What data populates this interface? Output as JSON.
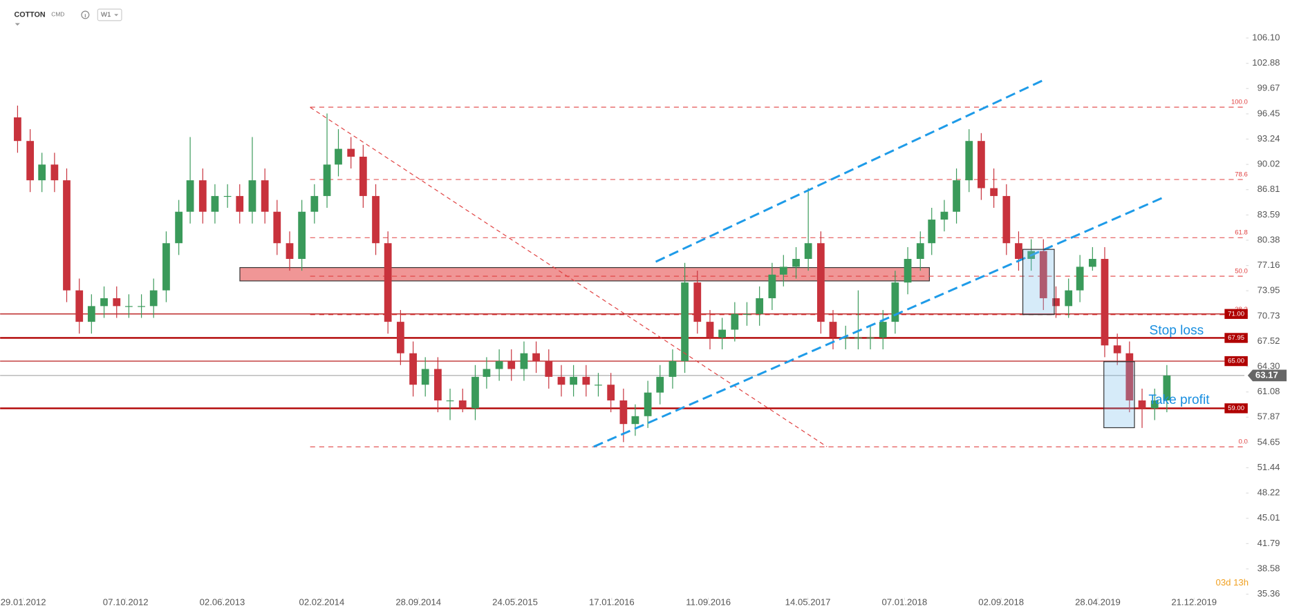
{
  "header": {
    "symbol": "COTTON",
    "market": "CMD",
    "timeframe": "W1",
    "countdown": "03d 13h"
  },
  "chart_data": {
    "type": "candlestick",
    "x": [
      "2012-01-15",
      "2012-02-15",
      "2012-03-15",
      "2012-04-15",
      "2012-05-15",
      "2012-06-15",
      "2012-07-15",
      "2012-08-15",
      "2012-09-15",
      "2012-10-15",
      "2012-11-15",
      "2012-12-15",
      "2013-01-15",
      "2013-02-15",
      "2013-03-15",
      "2013-04-15",
      "2013-05-15",
      "2013-06-15",
      "2013-07-15",
      "2013-08-15",
      "2013-09-15",
      "2013-10-15",
      "2013-11-15",
      "2013-12-15",
      "2014-01-15",
      "2014-02-15",
      "2014-03-15",
      "2014-04-15",
      "2014-05-15",
      "2014-06-15",
      "2014-07-15",
      "2014-08-15",
      "2014-09-15",
      "2014-10-15",
      "2014-11-15",
      "2014-12-15",
      "2015-01-15",
      "2015-02-15",
      "2015-03-15",
      "2015-04-15",
      "2015-05-15",
      "2015-06-15",
      "2015-07-15",
      "2015-08-15",
      "2015-09-15",
      "2015-10-15",
      "2015-11-15",
      "2015-12-15",
      "2016-01-15",
      "2016-02-15",
      "2016-03-15",
      "2016-04-15",
      "2016-05-15",
      "2016-06-15",
      "2016-07-15",
      "2016-08-15",
      "2016-09-15",
      "2016-10-15",
      "2016-11-15",
      "2016-12-15",
      "2017-01-15",
      "2017-02-15",
      "2017-03-15",
      "2017-04-15",
      "2017-05-15",
      "2017-06-15",
      "2017-07-15",
      "2017-08-15",
      "2017-09-15",
      "2017-10-15",
      "2017-11-15",
      "2017-12-15",
      "2018-01-15",
      "2018-02-15",
      "2018-03-15",
      "2018-04-15",
      "2018-05-15",
      "2018-06-15",
      "2018-07-15",
      "2018-08-15",
      "2018-09-15",
      "2018-10-15",
      "2018-11-15",
      "2018-12-15",
      "2019-01-15",
      "2019-02-15",
      "2019-03-15",
      "2019-04-15",
      "2019-05-15",
      "2019-06-15",
      "2019-07-15",
      "2019-08-15",
      "2019-09-15",
      "2019-10-15"
    ],
    "open": [
      96,
      93,
      88,
      90,
      88,
      74,
      70,
      72,
      73,
      72,
      72,
      72,
      74,
      80,
      84,
      88,
      84,
      86,
      86,
      84,
      88,
      84,
      80,
      78,
      84,
      86,
      90,
      92,
      91,
      86,
      80,
      70,
      66,
      62,
      64,
      60,
      60,
      59,
      63,
      64,
      65,
      64,
      66,
      65,
      63,
      62,
      63,
      62,
      62,
      60,
      57,
      58,
      61,
      63,
      65,
      75,
      70,
      68,
      69,
      71,
      71,
      73,
      76,
      77,
      78,
      80,
      70,
      68,
      68,
      68,
      68,
      70,
      75,
      78,
      80,
      83,
      84,
      88,
      93,
      87,
      86,
      80,
      78,
      79,
      73,
      72,
      74,
      77,
      78,
      67,
      66,
      60,
      59,
      60
    ],
    "high": [
      97.5,
      94.5,
      91.5,
      91.5,
      89.5,
      75.5,
      73.5,
      74.5,
      74.5,
      73.5,
      73.5,
      75.5,
      81.5,
      85.5,
      93.5,
      89.5,
      87.5,
      87.5,
      87.5,
      93.5,
      89.5,
      85.5,
      81.5,
      85.5,
      87.5,
      96.5,
      94.5,
      93.5,
      92.5,
      87.5,
      81.5,
      71.5,
      67.5,
      65.5,
      65.5,
      61.5,
      61.5,
      64.5,
      65.5,
      66.5,
      66.5,
      67.5,
      67.5,
      66.5,
      64.5,
      64.5,
      64.5,
      63.5,
      63.5,
      61.5,
      59.5,
      62.5,
      64.5,
      66.5,
      77.5,
      76.5,
      71.5,
      70.5,
      72.5,
      72.5,
      74.5,
      77.5,
      78.5,
      79.5,
      87,
      81.5,
      71.5,
      69.5,
      74,
      69.5,
      71.5,
      76.5,
      79.5,
      81.5,
      84.5,
      85.5,
      89.5,
      94.5,
      94,
      89.5,
      87.5,
      81.5,
      80.5,
      80.5,
      74.5,
      75.5,
      78.5,
      79.5,
      79.5,
      68.5,
      67.5,
      61.5,
      61.5,
      64.5
    ],
    "low": [
      91.5,
      86.5,
      86.5,
      86.5,
      72.5,
      68.5,
      68.5,
      70.5,
      70.5,
      70.5,
      70.5,
      70.5,
      72.5,
      78.5,
      82.5,
      82.5,
      82.5,
      84.5,
      82.5,
      82.5,
      82.5,
      78.5,
      76.5,
      76.5,
      82.5,
      84.5,
      88.5,
      89.5,
      84.5,
      78.5,
      68.5,
      64.5,
      60.5,
      60.5,
      58.5,
      57.5,
      58.5,
      57.5,
      61.5,
      62.5,
      62.5,
      62.5,
      63.5,
      61.5,
      60.5,
      60.5,
      60.5,
      60.5,
      58.5,
      54.7,
      55.5,
      56.5,
      59.5,
      61.5,
      63.5,
      68.5,
      66.5,
      66.5,
      67.5,
      69.5,
      69.5,
      71.5,
      74.5,
      75.5,
      76.5,
      68.5,
      66.5,
      66.5,
      66.5,
      66.5,
      66.5,
      68.5,
      73.5,
      76.5,
      78.5,
      81.5,
      82.5,
      86.5,
      85.5,
      84.5,
      78.5,
      76.5,
      76.5,
      71.5,
      70.5,
      70.5,
      72.5,
      76.5,
      65.5,
      64.5,
      58.5,
      56.5,
      57.5,
      58.5
    ],
    "close": [
      93,
      88,
      90,
      88,
      74,
      70,
      72,
      73,
      72,
      72,
      72,
      74,
      80,
      84,
      88,
      84,
      86,
      86,
      84,
      88,
      84,
      80,
      78,
      84,
      86,
      90,
      92,
      91,
      86,
      80,
      70,
      66,
      62,
      64,
      60,
      60,
      59,
      63,
      64,
      65,
      64,
      66,
      65,
      63,
      62,
      63,
      62,
      62,
      60,
      57,
      58,
      61,
      63,
      65,
      75,
      70,
      68,
      69,
      71,
      71,
      73,
      76,
      77,
      78,
      80,
      70,
      68,
      68,
      68,
      68,
      70,
      75,
      78,
      80,
      83,
      84,
      88,
      93,
      87,
      86,
      80,
      78,
      79,
      73,
      72,
      74,
      77,
      78,
      67,
      66,
      60,
      59,
      60,
      63.17
    ],
    "up_color": "#3a9a5a",
    "down_color": "#c8323c",
    "xlim": [
      "2011-12-03",
      "2020-04-23"
    ],
    "xticks": [
      {
        "value": "2012-01-29",
        "label": "29.01.2012"
      },
      {
        "value": "2012-10-07",
        "label": "07.10.2012"
      },
      {
        "value": "2013-06-02",
        "label": "02.06.2013"
      },
      {
        "value": "2014-02-02",
        "label": "02.02.2014"
      },
      {
        "value": "2014-09-28",
        "label": "28.09.2014"
      },
      {
        "value": "2015-05-24",
        "label": "24.05.2015"
      },
      {
        "value": "2016-01-17",
        "label": "17.01.2016"
      },
      {
        "value": "2016-09-11",
        "label": "11.09.2016"
      },
      {
        "value": "2017-05-14",
        "label": "14.05.2017"
      },
      {
        "value": "2018-01-07",
        "label": "07.01.2018"
      },
      {
        "value": "2018-09-02",
        "label": "02.09.2018"
      },
      {
        "value": "2019-04-28",
        "label": "28.04.2019"
      },
      {
        "value": "2019-12-21",
        "label": "21.12.2019"
      }
    ],
    "ylim": [
      34.9,
      110.93
    ],
    "yticks": [
      {
        "value": 106.1,
        "label": "106.10"
      },
      {
        "value": 102.88,
        "label": "102.88"
      },
      {
        "value": 99.67,
        "label": "99.67"
      },
      {
        "value": 96.45,
        "label": "96.45"
      },
      {
        "value": 93.24,
        "label": "93.24"
      },
      {
        "value": 90.02,
        "label": "90.02"
      },
      {
        "value": 86.81,
        "label": "86.81"
      },
      {
        "value": 83.59,
        "label": "83.59"
      },
      {
        "value": 80.38,
        "label": "80.38"
      },
      {
        "value": 77.16,
        "label": "77.16"
      },
      {
        "value": 73.95,
        "label": "73.95"
      },
      {
        "value": 70.73,
        "label": "70.73"
      },
      {
        "value": 67.52,
        "label": "67.52"
      },
      {
        "value": 64.3,
        "label": "64.30"
      },
      {
        "value": 61.08,
        "label": "61.08"
      },
      {
        "value": 57.87,
        "label": "57.87"
      },
      {
        "value": 54.65,
        "label": "54.65"
      },
      {
        "value": 51.44,
        "label": "51.44"
      },
      {
        "value": 48.22,
        "label": "48.22"
      },
      {
        "value": 45.01,
        "label": "45.01"
      },
      {
        "value": 41.79,
        "label": "41.79"
      },
      {
        "value": 38.58,
        "label": "38.58"
      },
      {
        "value": 35.36,
        "label": "35.36"
      }
    ],
    "fib_levels": [
      {
        "value": 97.3,
        "label": "100.0"
      },
      {
        "value": 88.1,
        "label": "78.6"
      },
      {
        "value": 80.7,
        "label": "61.8"
      },
      {
        "value": 75.8,
        "label": "50.0"
      },
      {
        "value": 70.9,
        "label": "38.2"
      },
      {
        "value": 54.1,
        "label": "0.0"
      }
    ],
    "levels": [
      {
        "value": 71,
        "label": "71.00"
      },
      {
        "value": 67.95,
        "label": "67.95"
      },
      {
        "value": 65,
        "label": "65.00"
      },
      {
        "value": 59,
        "label": "59.00"
      }
    ],
    "level_color": "#b00000",
    "current_price": {
      "value": 63.17,
      "label": "63.17"
    },
    "zone": [
      75.2,
      76.9
    ],
    "annotations": [
      "Stop loss",
      "Take profit"
    ]
  }
}
